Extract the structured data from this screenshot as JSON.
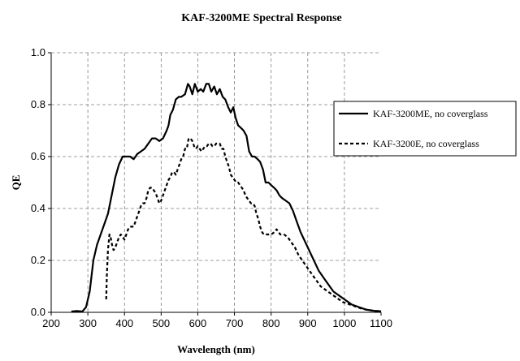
{
  "chart_data": {
    "type": "line",
    "title": "KAF-3200ME Spectral Response",
    "xlabel": "Wavelength (nm)",
    "ylabel": "QE",
    "xlim": [
      200,
      1100
    ],
    "ylim": [
      0,
      1.0
    ],
    "x_ticks": [
      "200",
      "300",
      "400",
      "500",
      "600",
      "700",
      "800",
      "900",
      "1000",
      "1100"
    ],
    "y_ticks": [
      "0.0",
      "0.2",
      "0.4",
      "0.6",
      "0.8",
      "1.0"
    ],
    "grid": true,
    "legend_position": "right",
    "series": [
      {
        "name": "KAF-3200ME, no coverglass",
        "style": "solid",
        "points": [
          [
            255,
            0.003
          ],
          [
            270,
            0.005
          ],
          [
            285,
            0.003
          ],
          [
            295,
            0.02
          ],
          [
            305,
            0.08
          ],
          [
            315,
            0.2
          ],
          [
            325,
            0.26
          ],
          [
            335,
            0.3
          ],
          [
            345,
            0.34
          ],
          [
            355,
            0.38
          ],
          [
            365,
            0.45
          ],
          [
            375,
            0.52
          ],
          [
            385,
            0.57
          ],
          [
            395,
            0.6
          ],
          [
            405,
            0.6
          ],
          [
            415,
            0.6
          ],
          [
            425,
            0.59
          ],
          [
            435,
            0.61
          ],
          [
            445,
            0.62
          ],
          [
            455,
            0.63
          ],
          [
            465,
            0.65
          ],
          [
            475,
            0.67
          ],
          [
            485,
            0.67
          ],
          [
            495,
            0.66
          ],
          [
            505,
            0.67
          ],
          [
            515,
            0.7
          ],
          [
            520,
            0.72
          ],
          [
            525,
            0.76
          ],
          [
            532,
            0.78
          ],
          [
            540,
            0.82
          ],
          [
            548,
            0.83
          ],
          [
            555,
            0.83
          ],
          [
            565,
            0.84
          ],
          [
            573,
            0.88
          ],
          [
            578,
            0.87
          ],
          [
            585,
            0.84
          ],
          [
            592,
            0.88
          ],
          [
            600,
            0.85
          ],
          [
            608,
            0.86
          ],
          [
            615,
            0.85
          ],
          [
            623,
            0.88
          ],
          [
            630,
            0.88
          ],
          [
            637,
            0.85
          ],
          [
            645,
            0.87
          ],
          [
            652,
            0.84
          ],
          [
            660,
            0.86
          ],
          [
            668,
            0.83
          ],
          [
            675,
            0.82
          ],
          [
            683,
            0.79
          ],
          [
            690,
            0.77
          ],
          [
            697,
            0.79
          ],
          [
            703,
            0.75
          ],
          [
            710,
            0.72
          ],
          [
            718,
            0.71
          ],
          [
            725,
            0.7
          ],
          [
            733,
            0.68
          ],
          [
            740,
            0.62
          ],
          [
            748,
            0.6
          ],
          [
            755,
            0.6
          ],
          [
            763,
            0.59
          ],
          [
            770,
            0.58
          ],
          [
            778,
            0.55
          ],
          [
            785,
            0.5
          ],
          [
            793,
            0.5
          ],
          [
            800,
            0.49
          ],
          [
            808,
            0.48
          ],
          [
            815,
            0.47
          ],
          [
            823,
            0.45
          ],
          [
            830,
            0.44
          ],
          [
            840,
            0.43
          ],
          [
            850,
            0.42
          ],
          [
            860,
            0.39
          ],
          [
            870,
            0.35
          ],
          [
            880,
            0.31
          ],
          [
            890,
            0.28
          ],
          [
            900,
            0.25
          ],
          [
            910,
            0.22
          ],
          [
            920,
            0.19
          ],
          [
            930,
            0.16
          ],
          [
            940,
            0.14
          ],
          [
            950,
            0.12
          ],
          [
            960,
            0.1
          ],
          [
            970,
            0.08
          ],
          [
            980,
            0.07
          ],
          [
            990,
            0.06
          ],
          [
            1000,
            0.05
          ],
          [
            1010,
            0.04
          ],
          [
            1020,
            0.03
          ],
          [
            1030,
            0.025
          ],
          [
            1040,
            0.02
          ],
          [
            1050,
            0.015
          ],
          [
            1060,
            0.01
          ],
          [
            1070,
            0.008
          ],
          [
            1080,
            0.006
          ],
          [
            1090,
            0.005
          ],
          [
            1100,
            0.004
          ]
        ]
      },
      {
        "name": "KAF-3200E, no coverglass",
        "style": "dashed",
        "points": [
          [
            350,
            0.05
          ],
          [
            352,
            0.15
          ],
          [
            355,
            0.24
          ],
          [
            359,
            0.3
          ],
          [
            362,
            0.29
          ],
          [
            366,
            0.26
          ],
          [
            370,
            0.24
          ],
          [
            375,
            0.25
          ],
          [
            380,
            0.27
          ],
          [
            385,
            0.29
          ],
          [
            390,
            0.3
          ],
          [
            395,
            0.29
          ],
          [
            400,
            0.28
          ],
          [
            405,
            0.3
          ],
          [
            410,
            0.32
          ],
          [
            415,
            0.33
          ],
          [
            420,
            0.33
          ],
          [
            425,
            0.33
          ],
          [
            430,
            0.35
          ],
          [
            435,
            0.37
          ],
          [
            440,
            0.39
          ],
          [
            445,
            0.41
          ],
          [
            450,
            0.42
          ],
          [
            455,
            0.42
          ],
          [
            460,
            0.44
          ],
          [
            465,
            0.47
          ],
          [
            470,
            0.48
          ],
          [
            475,
            0.48
          ],
          [
            480,
            0.47
          ],
          [
            485,
            0.46
          ],
          [
            490,
            0.44
          ],
          [
            495,
            0.42
          ],
          [
            500,
            0.43
          ],
          [
            505,
            0.45
          ],
          [
            510,
            0.47
          ],
          [
            515,
            0.49
          ],
          [
            520,
            0.51
          ],
          [
            525,
            0.52
          ],
          [
            530,
            0.54
          ],
          [
            535,
            0.54
          ],
          [
            540,
            0.53
          ],
          [
            545,
            0.55
          ],
          [
            550,
            0.57
          ],
          [
            555,
            0.59
          ],
          [
            560,
            0.6
          ],
          [
            565,
            0.63
          ],
          [
            570,
            0.63
          ],
          [
            575,
            0.67
          ],
          [
            580,
            0.67
          ],
          [
            585,
            0.66
          ],
          [
            590,
            0.64
          ],
          [
            595,
            0.63
          ],
          [
            600,
            0.64
          ],
          [
            605,
            0.63
          ],
          [
            610,
            0.62
          ],
          [
            615,
            0.63
          ],
          [
            620,
            0.64
          ],
          [
            625,
            0.64
          ],
          [
            630,
            0.65
          ],
          [
            635,
            0.65
          ],
          [
            640,
            0.64
          ],
          [
            645,
            0.64
          ],
          [
            650,
            0.65
          ],
          [
            655,
            0.65
          ],
          [
            660,
            0.65
          ],
          [
            665,
            0.63
          ],
          [
            670,
            0.63
          ],
          [
            675,
            0.6
          ],
          [
            680,
            0.58
          ],
          [
            685,
            0.56
          ],
          [
            690,
            0.53
          ],
          [
            695,
            0.52
          ],
          [
            700,
            0.51
          ],
          [
            705,
            0.5
          ],
          [
            710,
            0.5
          ],
          [
            715,
            0.49
          ],
          [
            720,
            0.48
          ],
          [
            725,
            0.47
          ],
          [
            730,
            0.45
          ],
          [
            735,
            0.44
          ],
          [
            740,
            0.43
          ],
          [
            745,
            0.42
          ],
          [
            750,
            0.42
          ],
          [
            755,
            0.41
          ],
          [
            760,
            0.38
          ],
          [
            765,
            0.36
          ],
          [
            770,
            0.33
          ],
          [
            775,
            0.31
          ],
          [
            780,
            0.3
          ],
          [
            790,
            0.3
          ],
          [
            800,
            0.3
          ],
          [
            810,
            0.31
          ],
          [
            815,
            0.32
          ],
          [
            820,
            0.31
          ],
          [
            825,
            0.3
          ],
          [
            835,
            0.3
          ],
          [
            845,
            0.29
          ],
          [
            855,
            0.27
          ],
          [
            865,
            0.25
          ],
          [
            875,
            0.22
          ],
          [
            885,
            0.2
          ],
          [
            895,
            0.18
          ],
          [
            905,
            0.16
          ],
          [
            915,
            0.14
          ],
          [
            925,
            0.12
          ],
          [
            935,
            0.1
          ],
          [
            945,
            0.09
          ],
          [
            955,
            0.08
          ],
          [
            965,
            0.07
          ],
          [
            975,
            0.06
          ],
          [
            985,
            0.05
          ],
          [
            995,
            0.04
          ],
          [
            1005,
            0.035
          ],
          [
            1015,
            0.03
          ],
          [
            1025,
            0.025
          ],
          [
            1035,
            0.02
          ],
          [
            1045,
            0.015
          ],
          [
            1055,
            0.012
          ],
          [
            1065,
            0.009
          ],
          [
            1075,
            0.007
          ],
          [
            1085,
            0.005
          ],
          [
            1095,
            0.004
          ],
          [
            1100,
            0.003
          ]
        ]
      }
    ]
  }
}
